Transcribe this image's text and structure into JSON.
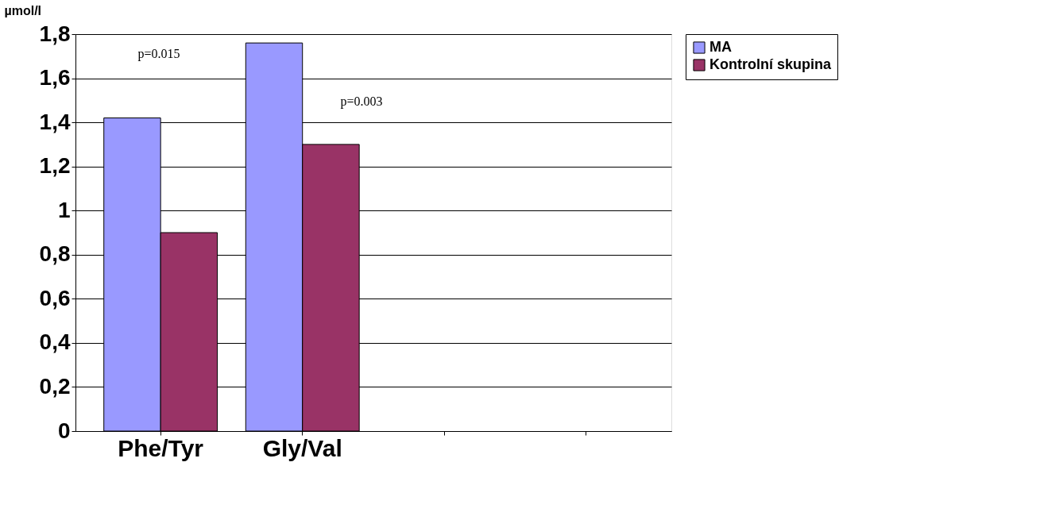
{
  "chart_data": {
    "type": "bar",
    "ylabel": "µmol/l",
    "categories": [
      "Phe/Tyr",
      "Gly/Val",
      null,
      null
    ],
    "series": [
      {
        "name": "MA",
        "color": "#9999ff",
        "values": [
          1.42,
          1.76,
          null,
          null
        ]
      },
      {
        "name": "Kontrolní skupina",
        "color": "#993366",
        "values": [
          0.9,
          1.3,
          null,
          null
        ]
      }
    ],
    "ylim": [
      0,
      1.8
    ],
    "yticks": [
      0,
      {
        "value": 0.2,
        "label": "0,2"
      },
      {
        "value": 0.4,
        "label": "0,4"
      },
      {
        "value": 0.6,
        "label": "0,6"
      },
      {
        "value": 0.8,
        "label": "0,8"
      },
      1,
      {
        "value": 1.2,
        "label": "1,2"
      },
      {
        "value": 1.4,
        "label": "1,4"
      },
      {
        "value": 1.6,
        "label": "1,6"
      },
      {
        "value": 1.8,
        "label": "1,8"
      }
    ],
    "annotations": [
      "p=0.015",
      "p=0.003"
    ],
    "grid": "y",
    "legend": "right"
  }
}
